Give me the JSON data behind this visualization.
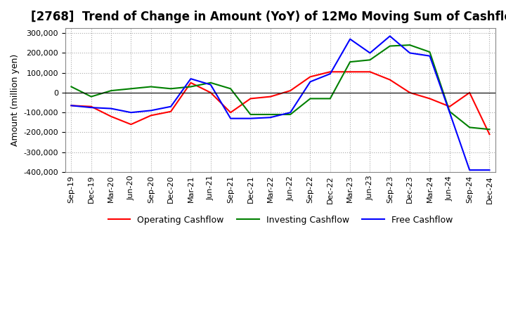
{
  "title": "[2768]  Trend of Change in Amount (YoY) of 12Mo Moving Sum of Cashflows",
  "ylabel": "Amount (million yen)",
  "ylim": [
    -400000,
    325000
  ],
  "yticks": [
    -400000,
    -300000,
    -200000,
    -100000,
    0,
    100000,
    200000,
    300000
  ],
  "x_labels": [
    "Sep-19",
    "Dec-19",
    "Mar-20",
    "Jun-20",
    "Sep-20",
    "Dec-20",
    "Mar-21",
    "Jun-21",
    "Sep-21",
    "Dec-21",
    "Mar-22",
    "Jun-22",
    "Sep-22",
    "Dec-22",
    "Mar-23",
    "Jun-23",
    "Sep-23",
    "Dec-23",
    "Mar-24",
    "Jun-24",
    "Sep-24",
    "Dec-24"
  ],
  "operating": [
    -65000,
    -70000,
    -120000,
    -160000,
    -115000,
    -95000,
    50000,
    0,
    -100000,
    -30000,
    -20000,
    10000,
    80000,
    105000,
    105000,
    105000,
    65000,
    0,
    -30000,
    -70000,
    0,
    -210000
  ],
  "investing": [
    30000,
    -20000,
    10000,
    20000,
    30000,
    20000,
    30000,
    50000,
    20000,
    -110000,
    -110000,
    -110000,
    -30000,
    -30000,
    155000,
    165000,
    235000,
    240000,
    205000,
    -95000,
    -175000,
    -185000
  ],
  "free": [
    -65000,
    -75000,
    -80000,
    -100000,
    -90000,
    -70000,
    70000,
    40000,
    -130000,
    -130000,
    -125000,
    -100000,
    55000,
    95000,
    270000,
    200000,
    285000,
    200000,
    185000,
    -100000,
    -390000,
    -390000
  ],
  "operating_color": "#ff0000",
  "investing_color": "#008000",
  "free_color": "#0000ff",
  "bg_color": "#ffffff",
  "grid_color": "#aaaaaa",
  "legend_labels": [
    "Operating Cashflow",
    "Investing Cashflow",
    "Free Cashflow"
  ],
  "title_fontsize": 12,
  "axis_fontsize": 9,
  "tick_fontsize": 8
}
